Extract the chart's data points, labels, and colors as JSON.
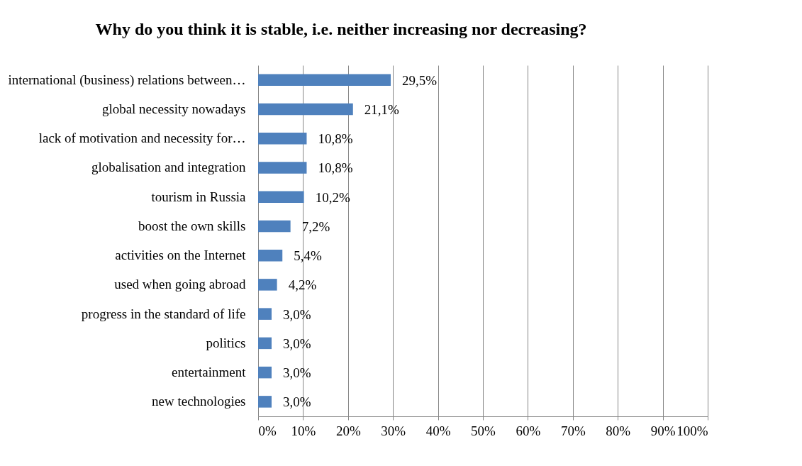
{
  "chart_data": {
    "type": "bar",
    "orientation": "horizontal",
    "title": "Why do you think it is stable, i.e. neither increasing nor decreasing?",
    "categories": [
      "international (business) relations between…",
      "global necessity nowadays",
      "lack of motivation and necessity for…",
      "globalisation and integration",
      "tourism in Russia",
      "boost the own skills",
      "activities on the Internet",
      "used when going abroad",
      "progress in the standard of life",
      "politics",
      "entertainment",
      "new technologies"
    ],
    "values": [
      29.5,
      21.1,
      10.8,
      10.8,
      10.2,
      7.2,
      5.4,
      4.2,
      3.0,
      3.0,
      3.0,
      3.0
    ],
    "value_labels": [
      "29,5%",
      "21,1%",
      "10,8%",
      "10,8%",
      "10,2%",
      "7,2%",
      "5,4%",
      "4,2%",
      "3,0%",
      "3,0%",
      "3,0%",
      "3,0%"
    ],
    "color": "#4f81bd",
    "xlim": [
      0,
      100
    ],
    "xticks": [
      {
        "value": 0,
        "label": "0%"
      },
      {
        "value": 10,
        "label": "10%"
      },
      {
        "value": 20,
        "label": "20%"
      },
      {
        "value": 30,
        "label": "30%"
      },
      {
        "value": 40,
        "label": "40%"
      },
      {
        "value": 50,
        "label": "50%"
      },
      {
        "value": 60,
        "label": "60%"
      },
      {
        "value": 70,
        "label": "70%"
      },
      {
        "value": 80,
        "label": "80%"
      },
      {
        "value": 90,
        "label": "90%"
      },
      {
        "value": 100,
        "label": "100%"
      }
    ],
    "grid": "x"
  }
}
